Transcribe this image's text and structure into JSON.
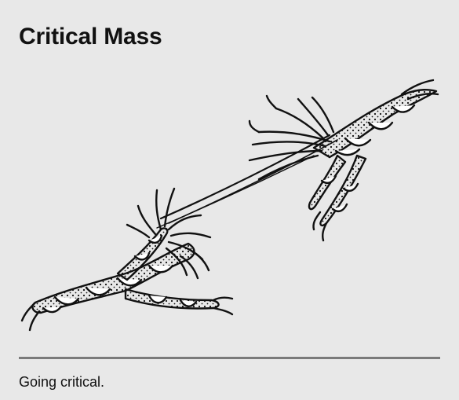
{
  "article": {
    "title": "Critical Mass",
    "caption": "Going critical."
  },
  "illustration": {
    "subject": "frayed-ropes-joined-by-thread-icon",
    "stroke_color": "#111111",
    "fill_color": "#ffffff",
    "background": "#e8e8e8"
  }
}
